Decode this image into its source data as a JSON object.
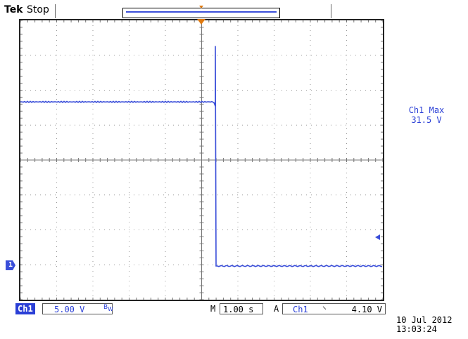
{
  "header": {
    "brand": "Tek",
    "acquisition_state": "Stop"
  },
  "measurement": {
    "label": "Ch1 Max",
    "value": "31.5 V"
  },
  "channel_marker": {
    "label": "1"
  },
  "bottom": {
    "channel": "Ch1",
    "volts_per_div": "5.00 V",
    "bandwidth_icon": "bandwidth-limit-icon",
    "timebase_label": "M",
    "time_per_div": "1.00 s",
    "trigger_mode": "A",
    "trigger_source": "Ch1",
    "trigger_slope_icon": "falling-edge-icon",
    "trigger_level": "4.10 V"
  },
  "timestamp": {
    "date": "10 Jul  2012",
    "time": "13:03:24"
  },
  "colors": {
    "trace": "#3a4ed9",
    "trigger_marker": "#e07a10",
    "readout_text": "#2a3fd6"
  },
  "waveform": {
    "units": "V",
    "volts_per_div": 5.0,
    "seconds_per_div": 1.0,
    "grid_divisions": [
      10,
      8
    ],
    "high_level_v": 23.5,
    "low_level_v": 0.0,
    "peak_v": 31.5
  }
}
